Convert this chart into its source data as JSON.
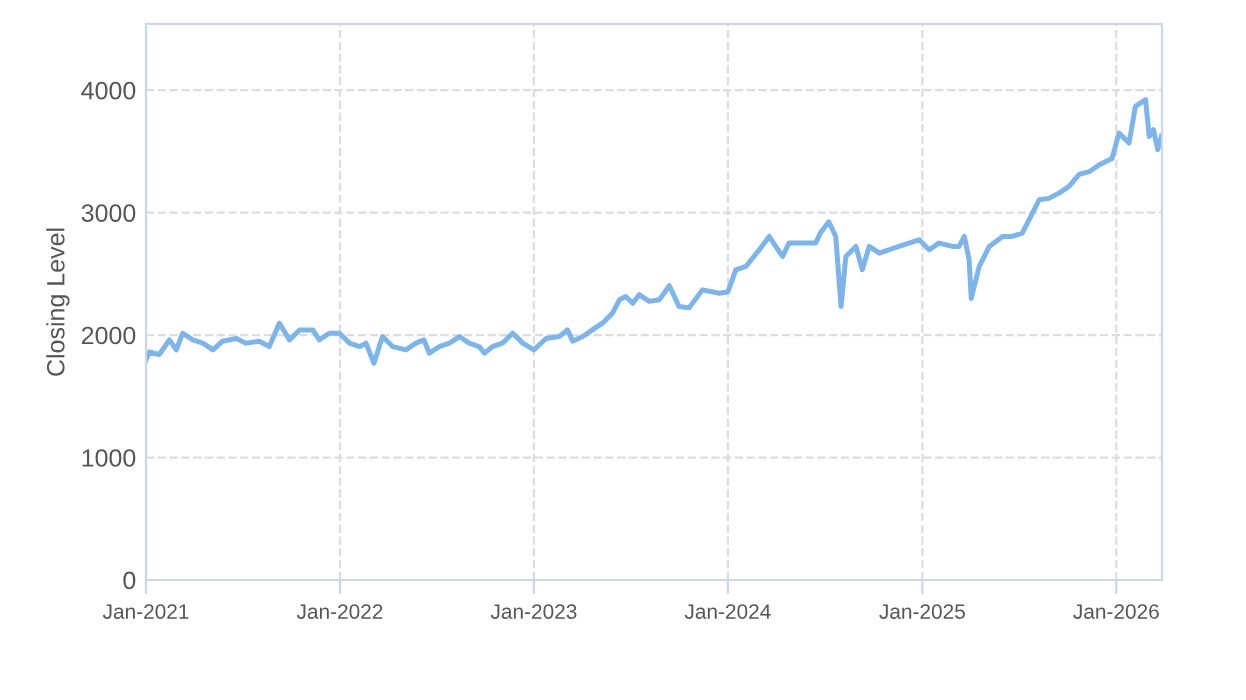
{
  "chart_data": {
    "type": "line",
    "ylabel": "Closing Level",
    "xlim": [
      "2021-01-01",
      "2026-03-28"
    ],
    "ylim": [
      0,
      4540
    ],
    "yticks": [
      0,
      1000,
      2000,
      3000,
      4000
    ],
    "xticks": [
      {
        "value": "2021-01-01",
        "label": "Jan-2021"
      },
      {
        "value": "2022-01-01",
        "label": "Jan-2022"
      },
      {
        "value": "2023-01-01",
        "label": "Jan-2023"
      },
      {
        "value": "2024-01-01",
        "label": "Jan-2024"
      },
      {
        "value": "2025-01-01",
        "label": "Jan-2025"
      },
      {
        "value": "2026-01-01",
        "label": "Jan-2026"
      }
    ],
    "grid": true,
    "line_style": "solid",
    "marker": "none",
    "series": [
      {
        "color": "#7cb5ec",
        "x": [
          "2021-01-01",
          "2021-01-07",
          "2021-01-26",
          "2021-02-14",
          "2021-02-27",
          "2021-03-11",
          "2021-03-30",
          "2021-04-18",
          "2021-05-07",
          "2021-05-25",
          "2021-06-20",
          "2021-07-08",
          "2021-08-02",
          "2021-08-21",
          "2021-09-09",
          "2021-09-28",
          "2021-10-17",
          "2021-11-11",
          "2021-11-23",
          "2021-12-12",
          "2021-12-31",
          "2022-01-19",
          "2022-02-07",
          "2022-02-19",
          "2022-03-06",
          "2022-03-22",
          "2022-04-10",
          "2022-05-05",
          "2022-05-24",
          "2022-06-08",
          "2022-06-18",
          "2022-07-07",
          "2022-07-26",
          "2022-08-14",
          "2022-09-01",
          "2022-09-20",
          "2022-09-30",
          "2022-10-15",
          "2022-11-03",
          "2022-11-22",
          "2022-12-11",
          "2023-01-01",
          "2023-01-24",
          "2023-02-18",
          "2023-03-05",
          "2023-03-15",
          "2023-04-03",
          "2023-04-21",
          "2023-05-10",
          "2023-05-29",
          "2023-06-11",
          "2023-06-23",
          "2023-07-06",
          "2023-07-18",
          "2023-08-06",
          "2023-08-25",
          "2023-09-13",
          "2023-10-01",
          "2023-10-20",
          "2023-11-14",
          "2023-12-16",
          "2024-01-01",
          "2024-01-16",
          "2024-02-04",
          "2024-02-29",
          "2024-03-19",
          "2024-03-31",
          "2024-04-13",
          "2024-04-25",
          "2024-05-20",
          "2024-06-14",
          "2024-06-23",
          "2024-07-09",
          "2024-07-22",
          "2024-08-01",
          "2024-08-10",
          "2024-08-29",
          "2024-09-10",
          "2024-09-23",
          "2024-10-12",
          "2024-10-30",
          "2024-11-18",
          "2024-12-07",
          "2024-12-26",
          "2025-01-14",
          "2025-02-01",
          "2025-02-27",
          "2025-03-11",
          "2025-03-21",
          "2025-03-30",
          "2025-04-03",
          "2025-04-18",
          "2025-05-07",
          "2025-06-01",
          "2025-06-19",
          "2025-07-08",
          "2025-07-21",
          "2025-08-09",
          "2025-08-27",
          "2025-09-15",
          "2025-10-04",
          "2025-10-23",
          "2025-11-11",
          "2025-11-29",
          "2025-12-24",
          "2026-01-06",
          "2026-01-25",
          "2026-02-06",
          "2026-02-25",
          "2026-03-04",
          "2026-03-12",
          "2026-03-20",
          "2026-03-27"
        ],
        "values": [
          1797,
          1862,
          1841,
          1961,
          1879,
          2015,
          1961,
          1934,
          1879,
          1950,
          1972,
          1934,
          1950,
          1906,
          2097,
          1961,
          2042,
          2042,
          1961,
          2015,
          2015,
          1934,
          1906,
          1934,
          1770,
          1988,
          1906,
          1879,
          1934,
          1961,
          1852,
          1906,
          1934,
          1988,
          1934,
          1906,
          1852,
          1906,
          1934,
          2015,
          1934,
          1879,
          1972,
          1988,
          2042,
          1950,
          1988,
          2042,
          2097,
          2179,
          2288,
          2315,
          2260,
          2330,
          2275,
          2288,
          2403,
          2233,
          2222,
          2369,
          2342,
          2353,
          2533,
          2560,
          2696,
          2805,
          2724,
          2642,
          2751,
          2751,
          2751,
          2833,
          2925,
          2805,
          2233,
          2642,
          2724,
          2533,
          2724,
          2669,
          2696,
          2724,
          2751,
          2778,
          2696,
          2751,
          2724,
          2724,
          2805,
          2615,
          2299,
          2560,
          2724,
          2805,
          2805,
          2833,
          2942,
          3105,
          3116,
          3159,
          3214,
          3312,
          3334,
          3388,
          3442,
          3649,
          3568,
          3867,
          3922,
          3622,
          3677,
          3514,
          3622
        ]
      }
    ]
  }
}
